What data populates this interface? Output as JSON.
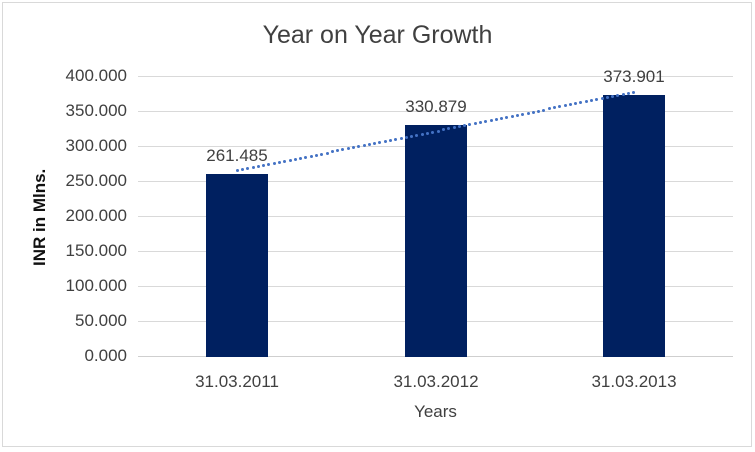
{
  "chart_data": {
    "type": "bar",
    "title": "Year on Year Growth",
    "xlabel": "Years",
    "ylabel": "INR in Mlns.",
    "categories": [
      "31.03.2011",
      "31.03.2012",
      "31.03.2013"
    ],
    "values": [
      261.485,
      330.879,
      373.901
    ],
    "data_labels": [
      "261.485",
      "330.879",
      "373.901"
    ],
    "ylim": [
      0,
      400
    ],
    "ytick_step": 50,
    "yticks": [
      0,
      50,
      100,
      150,
      200,
      250,
      300,
      350,
      400
    ],
    "ytick_labels": [
      "0.000",
      "50.000",
      "100.000",
      "150.000",
      "200.000",
      "250.000",
      "300.000",
      "350.000",
      "400.000"
    ],
    "grid": true,
    "legend": "none",
    "trendline": {
      "type": "linear",
      "style": "dotted",
      "color": "#4472c4"
    },
    "colors": {
      "bar": "#002060",
      "grid": "#d9d9d9",
      "axis": "#cfcfcf",
      "text": "#404040",
      "y_axis_title": "#111111",
      "border": "#d9d9d9",
      "background": "#ffffff",
      "trend": "#4472c4"
    }
  }
}
